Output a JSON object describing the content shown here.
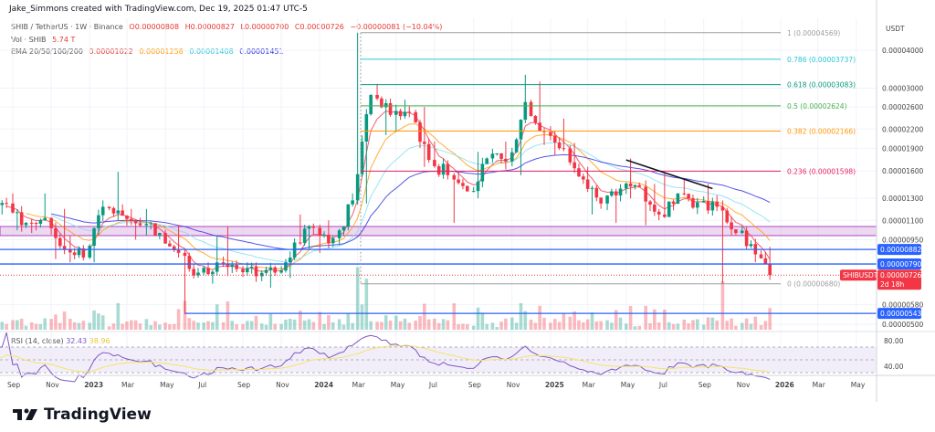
{
  "header": {
    "credit": "Jake_Simmons created with TradingView.com, Dec 19, 2025 01:47 UTC-5",
    "symbol": "SHIB / TetherUS · 1W · Binance",
    "ohlc": {
      "o": "O0.00000808",
      "h": "H0.00000827",
      "l": "L0.00000700",
      "c": "C0.00000726",
      "chg": "−0.00000081 (−10.04%)"
    },
    "vol_label": "Vol · SHIB",
    "vol_value": "5.74 T",
    "ema_label": "EMA 20/50/100/200",
    "ema_values": [
      "0.00001022",
      "0.00001258",
      "0.00001408",
      "0.00001451"
    ],
    "rsi_label": "RSI (14, close)",
    "rsi_values": [
      "32.43",
      "38.96"
    ]
  },
  "price_axis": {
    "unit": "USDT",
    "ticks": [
      "0.00004000",
      "0.00003000",
      "0.00002600",
      "0.00002200",
      "0.00001900",
      "0.00001600",
      "0.00001300",
      "0.00001100",
      "0.00000950",
      "0.00000580",
      "0.00000500"
    ],
    "rsi_ticks": [
      "80.00",
      "40.00"
    ],
    "tags": [
      {
        "label": "0.00000882",
        "color": "#2962ff"
      },
      {
        "label": "0.00000790",
        "color": "#2962ff"
      },
      {
        "label": "0.00000543",
        "color": "#2962ff"
      }
    ],
    "last_price": {
      "symbol": "SHIBUSDT",
      "value": "0.00000726",
      "countdown": "2d 18h",
      "color": "#f23645"
    }
  },
  "time_axis": [
    "Sep",
    "Nov",
    "2023",
    "Mar",
    "May",
    "Jul",
    "Sep",
    "Nov",
    "2024",
    "Mar",
    "May",
    "Jul",
    "Sep",
    "Nov",
    "2025",
    "Mar",
    "May",
    "Jul",
    "Sep",
    "Nov",
    "2026",
    "Mar",
    "May"
  ],
  "fib_levels": [
    {
      "label": "1 (0.00004569)",
      "price": 4.569e-05,
      "color": "#9e9e9e"
    },
    {
      "label": "0.786 (0.00003737)",
      "price": 3.737e-05,
      "color": "#26c6da"
    },
    {
      "label": "0.618 (0.00003083)",
      "price": 3.083e-05,
      "color": "#089981"
    },
    {
      "label": "0.5 (0.00002624)",
      "price": 2.624e-05,
      "color": "#4caf50"
    },
    {
      "label": "0.382 (0.00002166)",
      "price": 2.166e-05,
      "color": "#ff9800"
    },
    {
      "label": "0.236 (0.00001598)",
      "price": 1.598e-05,
      "color": "#e91e63"
    },
    {
      "label": "0 (0.00000680)",
      "price": 6.8e-06,
      "color": "#9e9e9e"
    }
  ],
  "horizontal_lines": [
    8.82e-06,
    7.9e-06,
    5.43e-06
  ],
  "support_zone": [
    9.8e-06,
    1.05e-05
  ],
  "trendline": [
    {
      "date": "2025-05-01",
      "price": 1.74e-05
    },
    {
      "date": "2025-09-15",
      "price": 1.4e-05
    }
  ],
  "footer": {
    "brand": "TradingView"
  },
  "chart_data": {
    "type": "candlestick",
    "scale": "log",
    "ylim": [
      4.9e-06,
      4.3e-05
    ],
    "colors": {
      "up": "#089981",
      "down": "#f23645"
    },
    "monthly_ohlc": [
      {
        "m": "2022-08",
        "o": 1.22e-05,
        "h": 1.75e-05,
        "l": 1.15e-05,
        "c": 1.25e-05
      },
      {
        "m": "2022-09",
        "o": 1.25e-05,
        "h": 1.35e-05,
        "l": 1.02e-05,
        "c": 1.08e-05
      },
      {
        "m": "2022-10",
        "o": 1.08e-05,
        "h": 1.35e-05,
        "l": 1e-05,
        "c": 1.12e-05
      },
      {
        "m": "2022-11",
        "o": 1.12e-05,
        "h": 1.2e-05,
        "l": 8.2e-06,
        "c": 8.8e-06
      },
      {
        "m": "2022-12",
        "o": 8.8e-06,
        "h": 9.8e-06,
        "l": 8e-06,
        "c": 8.3e-06
      },
      {
        "m": "2023-01",
        "o": 8.3e-06,
        "h": 1.28e-05,
        "l": 8e-06,
        "c": 1.22e-05
      },
      {
        "m": "2023-02",
        "o": 1.22e-05,
        "h": 1.59e-05,
        "l": 1.1e-05,
        "c": 1.14e-05
      },
      {
        "m": "2023-03",
        "o": 1.14e-05,
        "h": 1.2e-05,
        "l": 9.5e-06,
        "c": 1.06e-05
      },
      {
        "m": "2023-04",
        "o": 1.06e-05,
        "h": 1.2e-05,
        "l": 9.8e-06,
        "c": 1e-05
      },
      {
        "m": "2023-05",
        "o": 1e-05,
        "h": 1.06e-05,
        "l": 8.3e-06,
        "c": 8.6e-06
      },
      {
        "m": "2023-06",
        "o": 8.6e-06,
        "h": 8.8e-06,
        "l": 5.4e-06,
        "c": 7.4e-06
      },
      {
        "m": "2023-07",
        "o": 7.4e-06,
        "h": 9.8e-06,
        "l": 6.8e-06,
        "c": 8e-06
      },
      {
        "m": "2023-08",
        "o": 8e-06,
        "h": 1.05e-05,
        "l": 7.2e-06,
        "c": 7.6e-06
      },
      {
        "m": "2023-09",
        "o": 7.6e-06,
        "h": 8e-06,
        "l": 6.9e-06,
        "c": 7.2e-06
      },
      {
        "m": "2023-10",
        "o": 7.2e-06,
        "h": 7.8e-06,
        "l": 6.6e-06,
        "c": 7.4e-06
      },
      {
        "m": "2023-11",
        "o": 7.4e-06,
        "h": 9.6e-06,
        "l": 7.1e-06,
        "c": 9.3e-06
      },
      {
        "m": "2023-12",
        "o": 9.3e-06,
        "h": 1.15e-05,
        "l": 8.8e-06,
        "c": 1.04e-05
      },
      {
        "m": "2024-01",
        "o": 1.04e-05,
        "h": 1.1e-05,
        "l": 8.6e-06,
        "c": 9.6e-06
      },
      {
        "m": "2024-02",
        "o": 9.6e-06,
        "h": 1.35e-05,
        "l": 9.1e-06,
        "c": 1.28e-05
      },
      {
        "m": "2024-03",
        "o": 1.28e-05,
        "h": 4.57e-05,
        "l": 1.25e-05,
        "c": 2.85e-05
      },
      {
        "m": "2024-04",
        "o": 2.85e-05,
        "h": 3.1e-05,
        "l": 2.1e-05,
        "c": 2.45e-05
      },
      {
        "m": "2024-05",
        "o": 2.45e-05,
        "h": 2.75e-05,
        "l": 2.15e-05,
        "c": 2.5e-05
      },
      {
        "m": "2024-06",
        "o": 2.5e-05,
        "h": 2.6e-05,
        "l": 1.65e-05,
        "c": 1.74e-05
      },
      {
        "m": "2024-07",
        "o": 1.74e-05,
        "h": 2e-05,
        "l": 1.5e-05,
        "c": 1.55e-05
      },
      {
        "m": "2024-08",
        "o": 1.55e-05,
        "h": 1.58e-05,
        "l": 1.08e-05,
        "c": 1.37e-05
      },
      {
        "m": "2024-09",
        "o": 1.37e-05,
        "h": 1.85e-05,
        "l": 1.3e-05,
        "c": 1.76e-05
      },
      {
        "m": "2024-10",
        "o": 1.76e-05,
        "h": 2e-05,
        "l": 1.62e-05,
        "c": 1.72e-05
      },
      {
        "m": "2024-11",
        "o": 1.72e-05,
        "h": 3.32e-05,
        "l": 1.55e-05,
        "c": 2.7e-05
      },
      {
        "m": "2024-12",
        "o": 2.7e-05,
        "h": 3.15e-05,
        "l": 1.95e-05,
        "c": 2.15e-05
      },
      {
        "m": "2025-01",
        "o": 2.15e-05,
        "h": 2.38e-05,
        "l": 1.8e-05,
        "c": 1.9e-05
      },
      {
        "m": "2025-02",
        "o": 1.9e-05,
        "h": 1.98e-05,
        "l": 1.45e-05,
        "c": 1.5e-05
      },
      {
        "m": "2025-03",
        "o": 1.5e-05,
        "h": 1.65e-05,
        "l": 1.15e-05,
        "c": 1.25e-05
      },
      {
        "m": "2025-04",
        "o": 1.25e-05,
        "h": 1.4e-05,
        "l": 1.08e-05,
        "c": 1.4e-05
      },
      {
        "m": "2025-05",
        "o": 1.4e-05,
        "h": 1.76e-05,
        "l": 1.3e-05,
        "c": 1.42e-05
      },
      {
        "m": "2025-06",
        "o": 1.42e-05,
        "h": 1.45e-05,
        "l": 1.06e-05,
        "c": 1.15e-05
      },
      {
        "m": "2025-07",
        "o": 1.15e-05,
        "h": 1.58e-05,
        "l": 1.12e-05,
        "c": 1.35e-05
      },
      {
        "m": "2025-08",
        "o": 1.35e-05,
        "h": 1.5e-05,
        "l": 1.2e-05,
        "c": 1.26e-05
      },
      {
        "m": "2025-09",
        "o": 1.26e-05,
        "h": 1.45e-05,
        "l": 1.18e-05,
        "c": 1.22e-05
      },
      {
        "m": "2025-10",
        "o": 1.22e-05,
        "h": 1.28e-05,
        "l": 6.8e-06,
        "c": 1e-05
      },
      {
        "m": "2025-11",
        "o": 1e-05,
        "h": 1.05e-05,
        "l": 8e-06,
        "c": 8.5e-06
      },
      {
        "m": "2025-12",
        "o": 8.5e-06,
        "h": 9e-06,
        "l": 7e-06,
        "c": 7.26e-06
      }
    ],
    "ema_colors": [
      "#f23645",
      "#ff9800",
      "#80deea",
      "#2a2ae0"
    ],
    "rsi_colors": {
      "rsi": "#7e57c2",
      "ma": "#f5e36b"
    }
  }
}
